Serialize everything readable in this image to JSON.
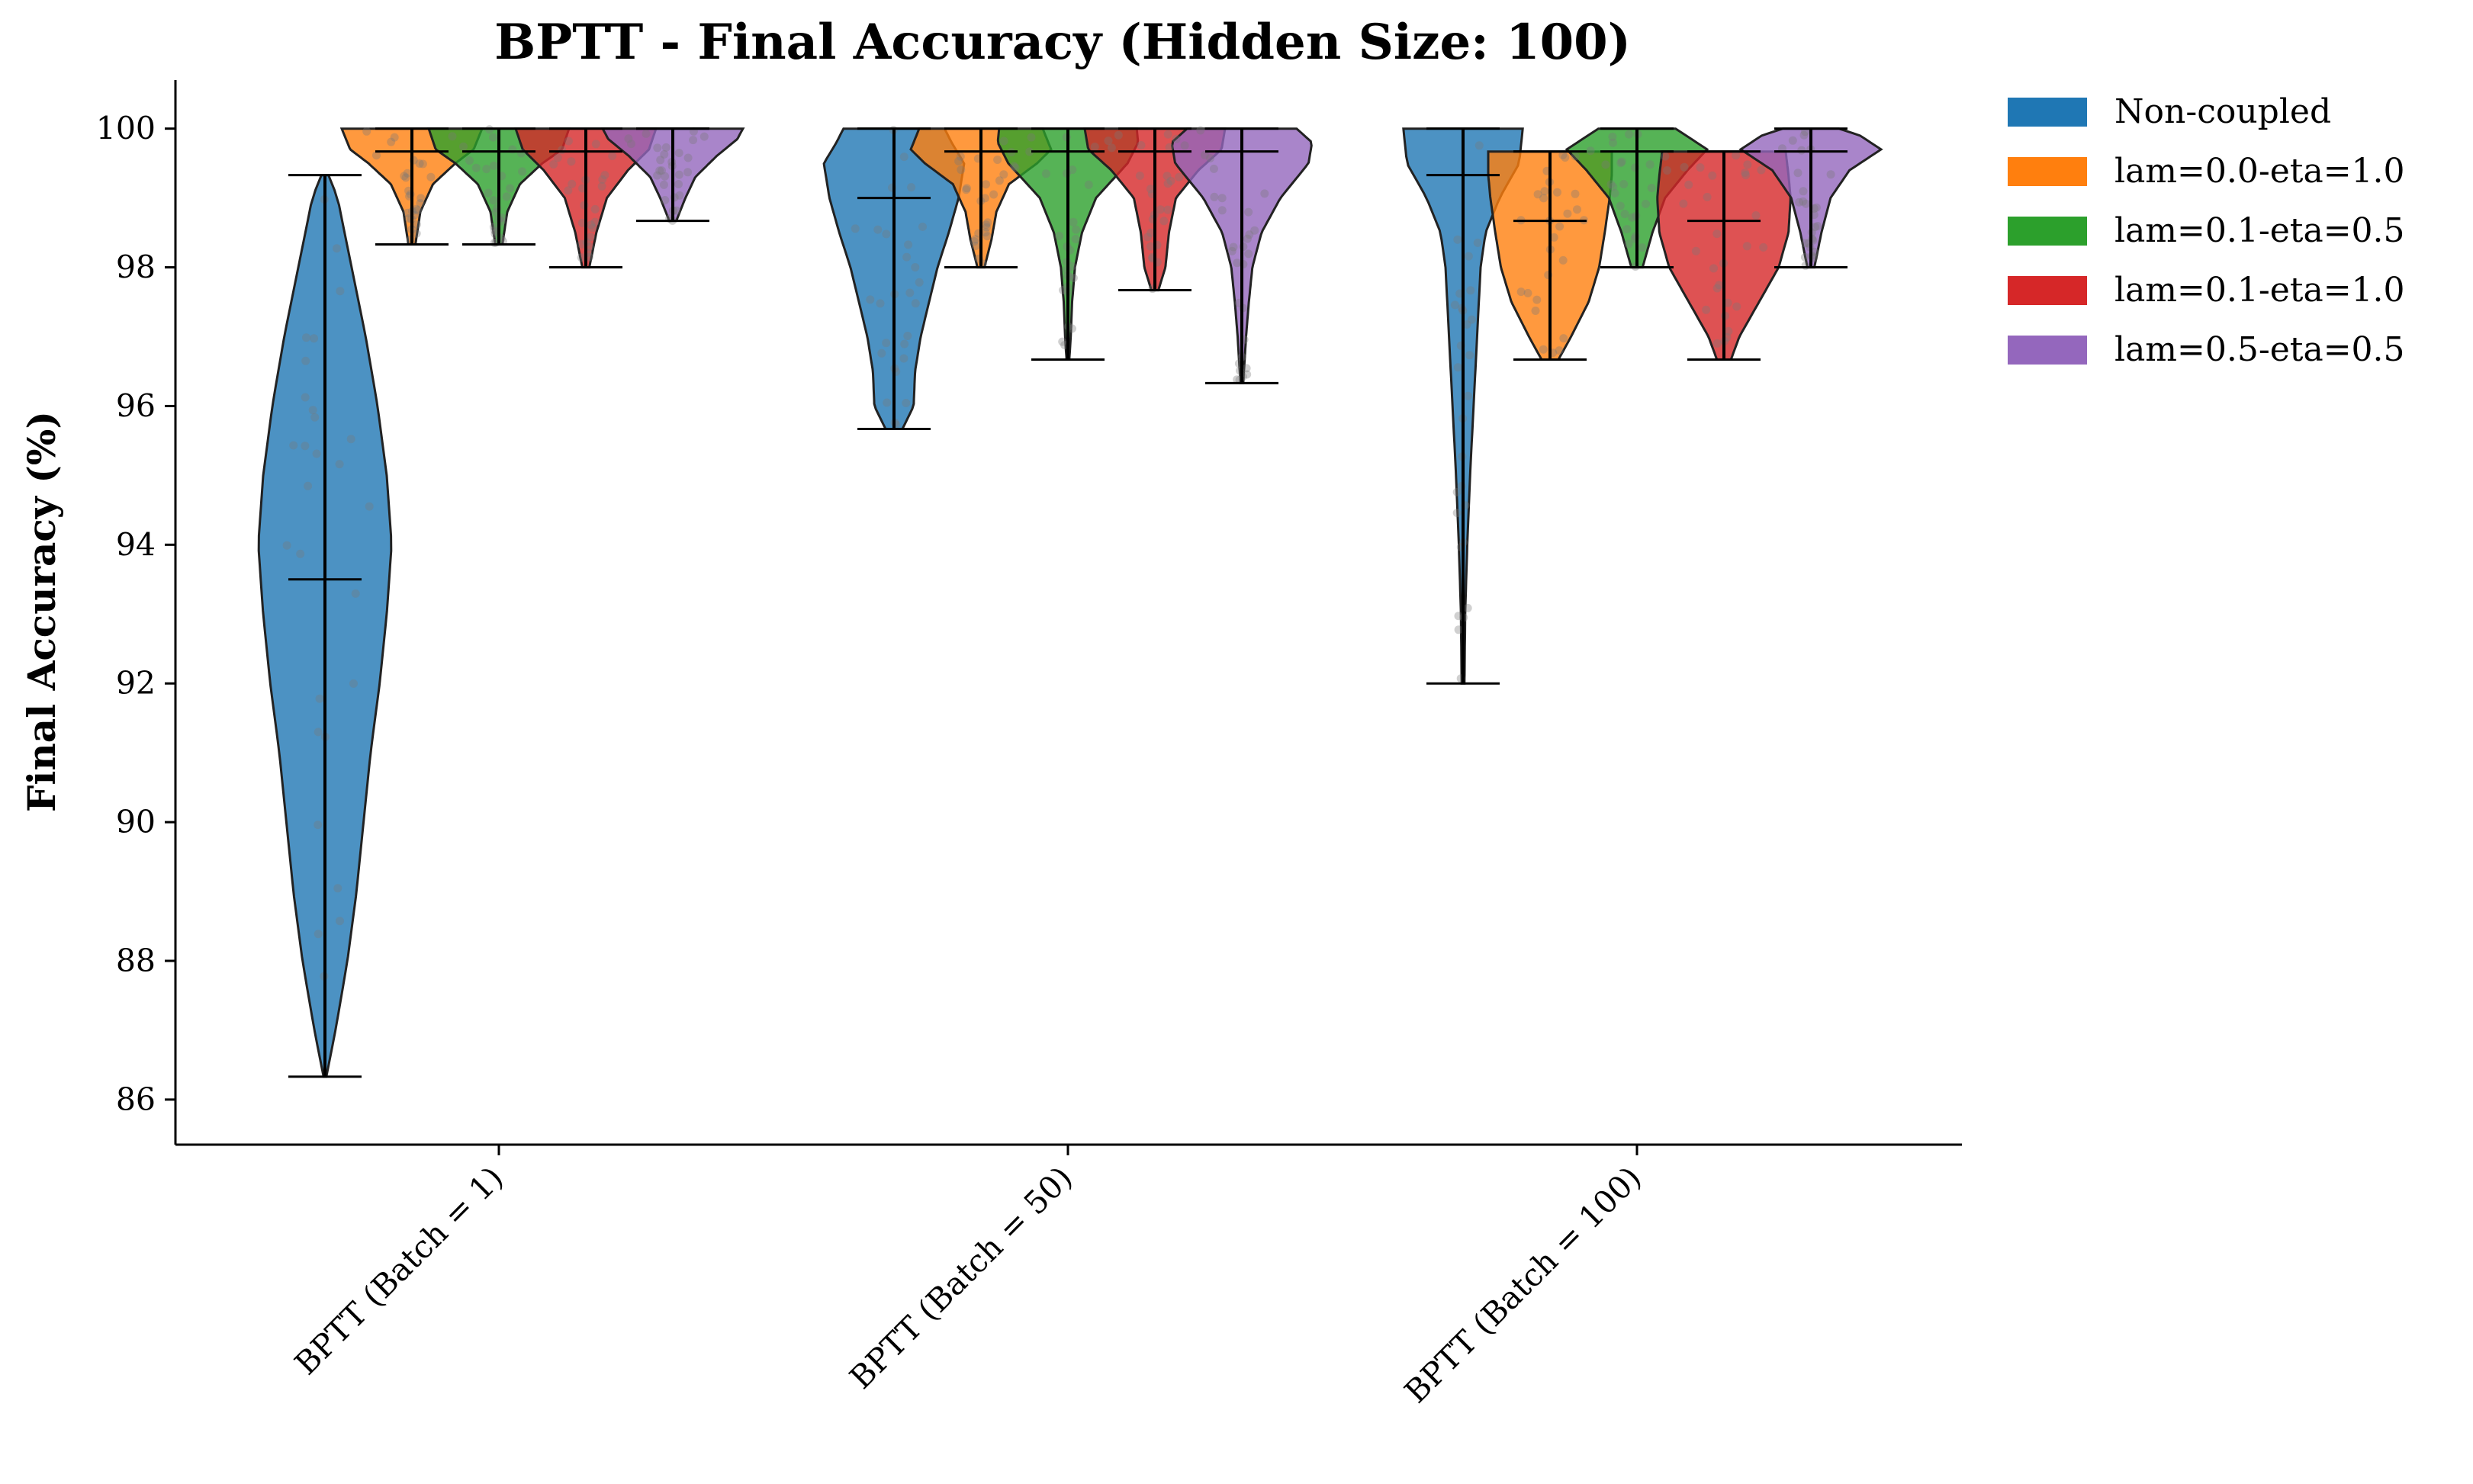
{
  "chart_data": {
    "type": "violin",
    "title": "BPTT - Final Accuracy (Hidden Size: 100)",
    "xlabel": "",
    "ylabel": "Final Accuracy (%)",
    "ylim": [
      85.35,
      100.7
    ],
    "yticks": [
      86,
      88,
      90,
      92,
      94,
      96,
      98,
      100
    ],
    "grid": false,
    "legend_position": "outside-top-right",
    "categories": [
      "BPTT (Batch = 1)",
      "BPTT (Batch = 50)",
      "BPTT (Batch = 100)"
    ],
    "series": [
      {
        "name": "Non-coupled",
        "color": "#1f77b4",
        "groups": [
          {
            "min": 86.33,
            "max": 99.33,
            "median": 93.5,
            "profile": [
              [
                86.33,
                0.02
              ],
              [
                87.0,
                0.15
              ],
              [
                88.0,
                0.32
              ],
              [
                89.0,
                0.45
              ],
              [
                90.0,
                0.55
              ],
              [
                91.0,
                0.65
              ],
              [
                92.0,
                0.78
              ],
              [
                93.0,
                0.88
              ],
              [
                94.0,
                0.95
              ],
              [
                95.0,
                0.88
              ],
              [
                96.0,
                0.75
              ],
              [
                97.0,
                0.58
              ],
              [
                98.0,
                0.38
              ],
              [
                99.0,
                0.18
              ],
              [
                99.33,
                0.05
              ]
            ]
          },
          {
            "min": 95.67,
            "max": 100.0,
            "median": 99.0,
            "profile": [
              [
                95.67,
                0.12
              ],
              [
                96.0,
                0.28
              ],
              [
                96.5,
                0.3
              ],
              [
                97.0,
                0.38
              ],
              [
                97.5,
                0.5
              ],
              [
                98.0,
                0.62
              ],
              [
                98.5,
                0.78
              ],
              [
                99.0,
                0.92
              ],
              [
                99.5,
                1.0
              ],
              [
                99.8,
                0.82
              ],
              [
                100.0,
                0.72
              ]
            ]
          },
          {
            "min": 92.0,
            "max": 100.0,
            "median": 99.33,
            "profile": [
              [
                92.0,
                0.02
              ],
              [
                93.0,
                0.03
              ],
              [
                94.0,
                0.06
              ],
              [
                95.0,
                0.1
              ],
              [
                96.0,
                0.15
              ],
              [
                97.0,
                0.2
              ],
              [
                98.0,
                0.25
              ],
              [
                98.5,
                0.32
              ],
              [
                99.0,
                0.52
              ],
              [
                99.5,
                0.8
              ],
              [
                100.0,
                0.85
              ]
            ]
          }
        ]
      },
      {
        "name": "lam=0.0-eta=1.0",
        "color": "#ff7f0e",
        "groups": [
          {
            "min": 98.33,
            "max": 100.0,
            "median": 99.67,
            "profile": [
              [
                98.33,
                0.05
              ],
              [
                98.8,
                0.12
              ],
              [
                99.2,
                0.3
              ],
              [
                99.5,
                0.62
              ],
              [
                99.7,
                0.88
              ],
              [
                100.0,
                1.0
              ]
            ]
          },
          {
            "min": 98.0,
            "max": 100.0,
            "median": 99.67,
            "profile": [
              [
                98.0,
                0.05
              ],
              [
                98.4,
                0.15
              ],
              [
                98.8,
                0.22
              ],
              [
                99.2,
                0.4
              ],
              [
                99.5,
                0.8
              ],
              [
                99.7,
                1.0
              ],
              [
                100.0,
                0.88
              ]
            ]
          },
          {
            "min": 96.67,
            "max": 99.67,
            "median": 98.67,
            "profile": [
              [
                96.67,
                0.12
              ],
              [
                97.0,
                0.3
              ],
              [
                97.5,
                0.55
              ],
              [
                98.0,
                0.7
              ],
              [
                98.5,
                0.78
              ],
              [
                99.0,
                0.85
              ],
              [
                99.33,
                0.88
              ],
              [
                99.67,
                0.88
              ]
            ]
          }
        ]
      },
      {
        "name": "lam=0.1-eta=0.5",
        "color": "#2ca02c",
        "groups": [
          {
            "min": 98.33,
            "max": 100.0,
            "median": 99.67,
            "profile": [
              [
                98.33,
                0.05
              ],
              [
                98.8,
                0.12
              ],
              [
                99.2,
                0.3
              ],
              [
                99.5,
                0.62
              ],
              [
                99.7,
                0.9
              ],
              [
                100.0,
                1.0
              ]
            ]
          },
          {
            "min": 96.67,
            "max": 100.0,
            "median": 99.67,
            "profile": [
              [
                96.67,
                0.02
              ],
              [
                97.0,
                0.04
              ],
              [
                97.5,
                0.06
              ],
              [
                98.0,
                0.1
              ],
              [
                98.5,
                0.2
              ],
              [
                99.0,
                0.4
              ],
              [
                99.5,
                0.85
              ],
              [
                99.8,
                1.0
              ],
              [
                100.0,
                0.98
              ]
            ]
          },
          {
            "min": 98.0,
            "max": 100.0,
            "median": 99.67,
            "profile": [
              [
                98.0,
                0.08
              ],
              [
                98.5,
                0.22
              ],
              [
                99.0,
                0.4
              ],
              [
                99.4,
                0.72
              ],
              [
                99.7,
                1.0
              ],
              [
                100.0,
                0.55
              ]
            ]
          }
        ]
      },
      {
        "name": "lam=0.1-eta=1.0",
        "color": "#d62728",
        "groups": [
          {
            "min": 98.0,
            "max": 100.0,
            "median": 99.67,
            "profile": [
              [
                98.0,
                0.05
              ],
              [
                98.5,
                0.15
              ],
              [
                99.0,
                0.3
              ],
              [
                99.4,
                0.6
              ],
              [
                99.7,
                0.9
              ],
              [
                100.0,
                1.0
              ]
            ]
          },
          {
            "min": 97.67,
            "max": 100.0,
            "median": 99.67,
            "profile": [
              [
                97.67,
                0.05
              ],
              [
                98.0,
                0.15
              ],
              [
                98.5,
                0.2
              ],
              [
                99.0,
                0.3
              ],
              [
                99.4,
                0.62
              ],
              [
                99.7,
                0.95
              ],
              [
                100.0,
                1.0
              ]
            ]
          },
          {
            "min": 96.67,
            "max": 99.67,
            "median": 98.67,
            "profile": [
              [
                96.67,
                0.1
              ],
              [
                97.0,
                0.22
              ],
              [
                97.5,
                0.5
              ],
              [
                98.0,
                0.78
              ],
              [
                98.5,
                0.92
              ],
              [
                99.0,
                0.95
              ],
              [
                99.33,
                0.92
              ],
              [
                99.67,
                0.88
              ]
            ]
          }
        ]
      },
      {
        "name": "lam=0.5-eta=0.5",
        "color": "#9467bd",
        "groups": [
          {
            "min": 98.67,
            "max": 100.0,
            "median": 100.0,
            "profile": [
              [
                98.67,
                0.05
              ],
              [
                99.0,
                0.18
              ],
              [
                99.3,
                0.32
              ],
              [
                99.6,
                0.62
              ],
              [
                99.85,
                0.92
              ],
              [
                100.0,
                1.0
              ]
            ]
          },
          {
            "min": 96.33,
            "max": 100.0,
            "median": 99.67,
            "profile": [
              [
                96.33,
                0.02
              ],
              [
                97.0,
                0.06
              ],
              [
                97.5,
                0.1
              ],
              [
                98.0,
                0.15
              ],
              [
                98.5,
                0.28
              ],
              [
                99.0,
                0.55
              ],
              [
                99.5,
                0.95
              ],
              [
                99.8,
                1.0
              ],
              [
                100.0,
                0.78
              ]
            ]
          },
          {
            "min": 98.0,
            "max": 100.0,
            "median": 99.67,
            "profile": [
              [
                98.0,
                0.05
              ],
              [
                98.5,
                0.15
              ],
              [
                99.0,
                0.28
              ],
              [
                99.4,
                0.55
              ],
              [
                99.7,
                1.0
              ],
              [
                99.9,
                0.7
              ],
              [
                100.0,
                0.4
              ]
            ]
          }
        ]
      }
    ]
  }
}
